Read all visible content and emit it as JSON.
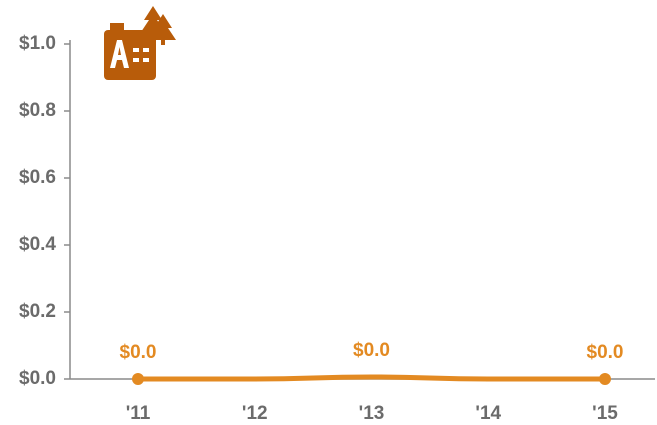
{
  "chart_data": {
    "type": "line",
    "categories": [
      "'11",
      "'12",
      "'13",
      "'14",
      "'15"
    ],
    "series": [
      {
        "name": "value",
        "color": "#e38a22",
        "values": [
          0,
          0,
          0.006,
          0,
          0
        ],
        "value_labels": [
          "$0.0",
          null,
          "$0.0",
          null,
          "$0.0"
        ]
      }
    ],
    "ylim": [
      0,
      1.0
    ],
    "yticks": [
      {
        "value": 0,
        "label": "$0.0"
      },
      {
        "value": 0.2,
        "label": "$0.2"
      },
      {
        "value": 0.4,
        "label": "$0.4"
      },
      {
        "value": 0.6,
        "label": "$0.6"
      },
      {
        "value": 0.8,
        "label": "$0.8"
      },
      {
        "value": 1.0,
        "label": "$1.0"
      }
    ]
  }
}
